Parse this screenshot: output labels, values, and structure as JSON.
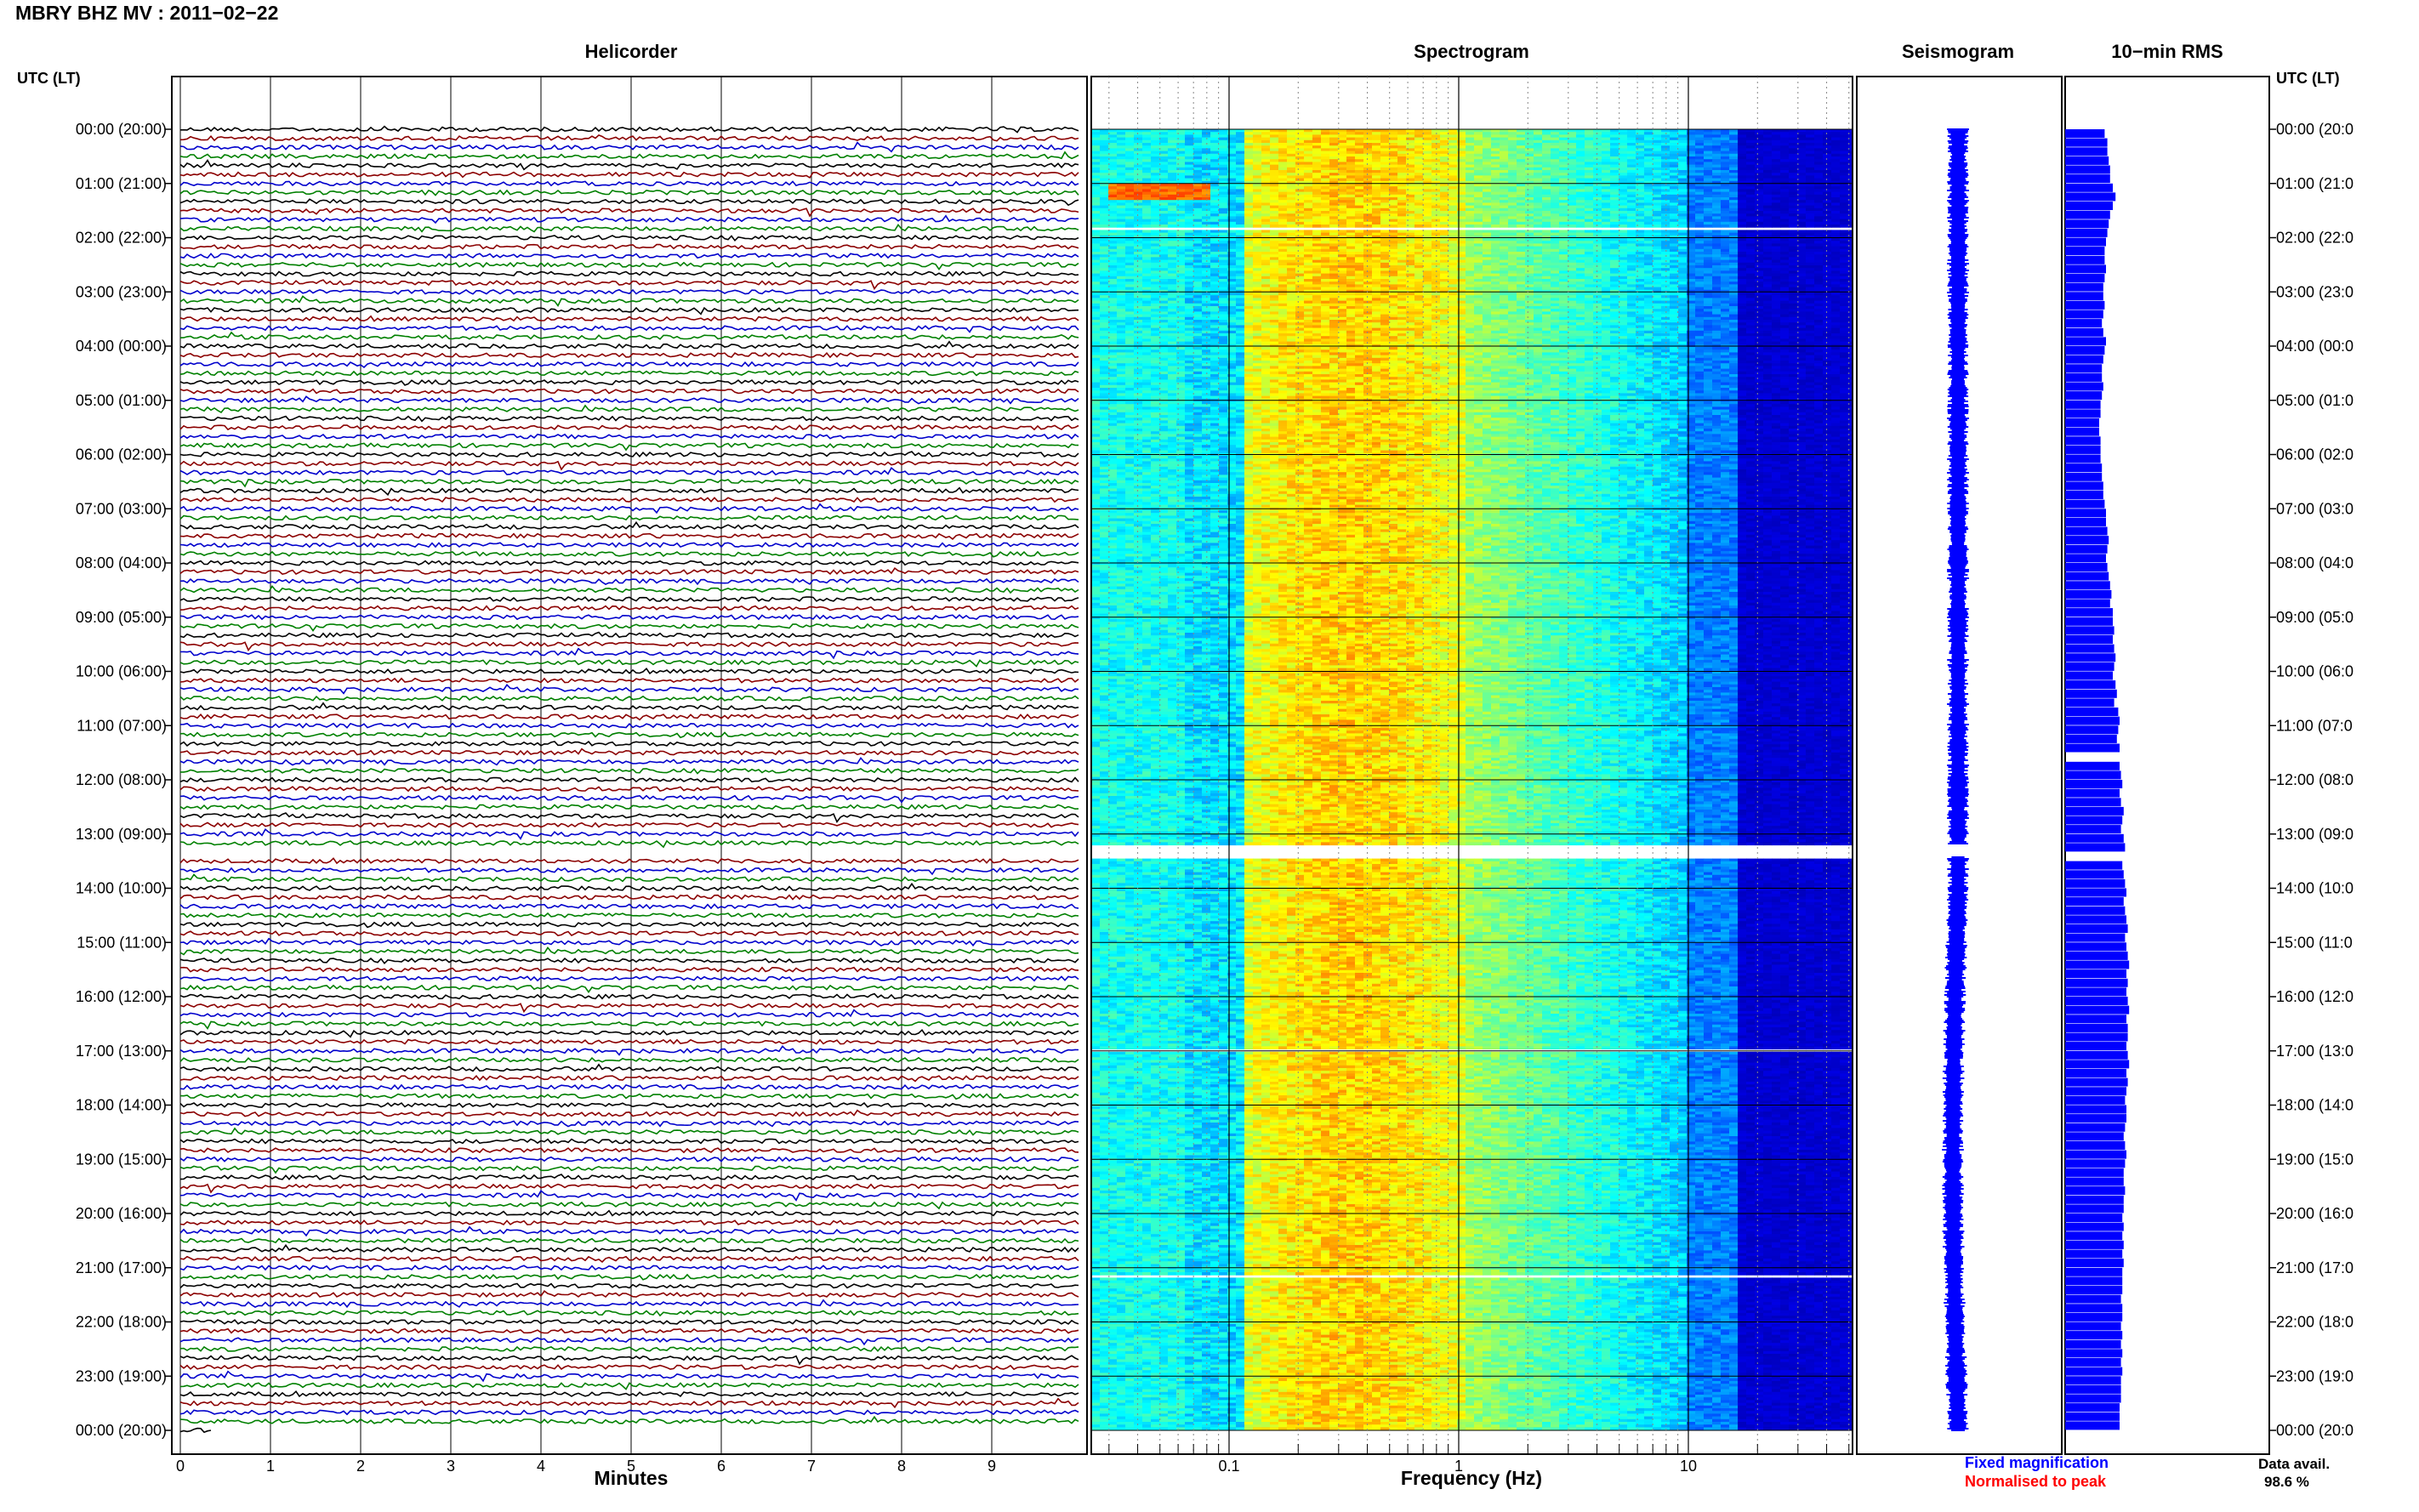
{
  "page_title": "MBRY BHZ MV : 2011−02−22",
  "panels": {
    "helicorder": "Helicorder",
    "spectrogram": "Spectrogram",
    "seismogram": "Seismogram",
    "rms": "10−min RMS"
  },
  "y_axis_label_left": "UTC (LT)",
  "y_axis_label_right": "UTC (LT)",
  "chart_data": {
    "type": "heatmap",
    "title": "MBRY BHZ MV : 2011−02−22",
    "time_ticks_left": [
      "00:00 (20:00)",
      "01:00 (21:00)",
      "02:00 (22:00)",
      "03:00 (23:00)",
      "04:00 (00:00)",
      "05:00 (01:00)",
      "06:00 (02:00)",
      "07:00 (03:00)",
      "08:00 (04:00)",
      "09:00 (05:00)",
      "10:00 (06:00)",
      "11:00 (07:00)",
      "12:00 (08:00)",
      "13:00 (09:00)",
      "14:00 (10:00)",
      "15:00 (11:00)",
      "16:00 (12:00)",
      "17:00 (13:00)",
      "18:00 (14:00)",
      "19:00 (15:00)",
      "20:00 (16:00)",
      "21:00 (17:00)",
      "22:00 (18:00)",
      "23:00 (19:00)",
      "00:00 (20:00)"
    ],
    "time_ticks_right": [
      "00:00 (20:0",
      "01:00 (21:0",
      "02:00 (22:0",
      "03:00 (23:0",
      "04:00 (00:0",
      "05:00 (01:0",
      "06:00 (02:0",
      "07:00 (03:0",
      "08:00 (04:0",
      "09:00 (05:0",
      "10:00 (06:0",
      "11:00 (07:0",
      "12:00 (08:0",
      "13:00 (09:0",
      "14:00 (10:0",
      "15:00 (11:0",
      "16:00 (12:0",
      "17:00 (13:0",
      "18:00 (14:0",
      "19:00 (15:0",
      "20:00 (16:0",
      "21:00 (17:0",
      "22:00 (18:0",
      "23:00 (19:0",
      "00:00 (20:0"
    ],
    "helicorder": {
      "xlabel": "Minutes",
      "x_ticks": [
        "0",
        "1",
        "2",
        "3",
        "4",
        "5",
        "6",
        "7",
        "8",
        "9"
      ],
      "xlim": [
        0,
        10
      ],
      "trace_colors": [
        "#000000",
        "#8b0000",
        "#0000cc",
        "#008000"
      ],
      "rows_per_hour": 6,
      "gap_utc_hours": [
        13.2,
        13.4
      ]
    },
    "spectrogram": {
      "xlabel": "Frequency (Hz)",
      "x_scale": "log",
      "xlim": [
        0.01,
        50
      ],
      "x_ticks": [
        "0.1",
        "1",
        "10"
      ],
      "x_tick_values": [
        0.1,
        1,
        10
      ],
      "colormap": "jet",
      "data_gaps_utc_hours": [
        [
          1.8,
          1.85
        ],
        [
          13.2,
          13.45
        ],
        [
          16.95,
          17.0
        ],
        [
          21.1,
          21.15
        ]
      ],
      "notable_events": [
        {
          "utc_hours": [
            1.0,
            1.3
          ],
          "freq_hz": [
            0.03,
            0.08
          ]
        }
      ]
    },
    "seismogram_legend": {
      "fixed": {
        "label": "Fixed magnification",
        "color": "#0000ff"
      },
      "normalised": {
        "label": "Normalised to peak",
        "color": "#ff0000"
      }
    },
    "rms_10min": {
      "color": "#0000ff",
      "values": [
        0.58,
        0.62,
        0.62,
        0.64,
        0.66,
        0.66,
        0.7,
        0.74,
        0.7,
        0.66,
        0.64,
        0.62,
        0.6,
        0.58,
        0.58,
        0.6,
        0.58,
        0.56,
        0.56,
        0.58,
        0.56,
        0.54,
        0.56,
        0.6,
        0.58,
        0.56,
        0.54,
        0.54,
        0.56,
        0.54,
        0.52,
        0.52,
        0.5,
        0.5,
        0.52,
        0.52,
        0.52,
        0.54,
        0.54,
        0.56,
        0.56,
        0.58,
        0.6,
        0.6,
        0.62,
        0.64,
        0.62,
        0.6,
        0.62,
        0.64,
        0.66,
        0.68,
        0.66,
        0.7,
        0.7,
        0.72,
        0.7,
        0.72,
        0.74,
        0.72,
        0.7,
        0.74,
        0.76,
        0.72,
        0.78,
        0.8,
        0.78,
        0.76,
        0.8,
        null,
        0.8,
        0.82,
        0.84,
        0.8,
        0.82,
        0.86,
        0.84,
        0.82,
        0.86,
        0.88,
        0.86,
        0.84,
        0.86,
        0.88,
        0.9,
        0.86,
        0.88,
        0.9,
        0.92,
        0.88,
        0.9,
        0.92,
        0.94,
        0.9,
        0.92,
        0.9,
        0.92,
        0.94,
        0.9,
        0.92,
        0.92,
        0.9,
        0.92,
        0.94,
        0.9,
        0.92,
        0.9,
        0.88,
        0.9,
        0.9,
        0.88,
        0.86,
        0.88,
        0.9,
        0.88,
        0.86,
        0.86,
        0.88,
        0.86,
        0.86,
        0.84,
        0.86,
        0.84,
        0.86,
        0.84,
        0.86,
        0.84,
        0.84,
        0.84,
        0.82,
        0.84,
        0.84,
        0.82,
        0.84,
        0.82,
        0.84,
        0.82,
        0.84,
        0.82,
        0.82,
        0.82,
        0.8,
        0.8,
        0.8
      ]
    }
  },
  "data_availability": {
    "label": "Data avail.",
    "value": "98.6 %"
  }
}
